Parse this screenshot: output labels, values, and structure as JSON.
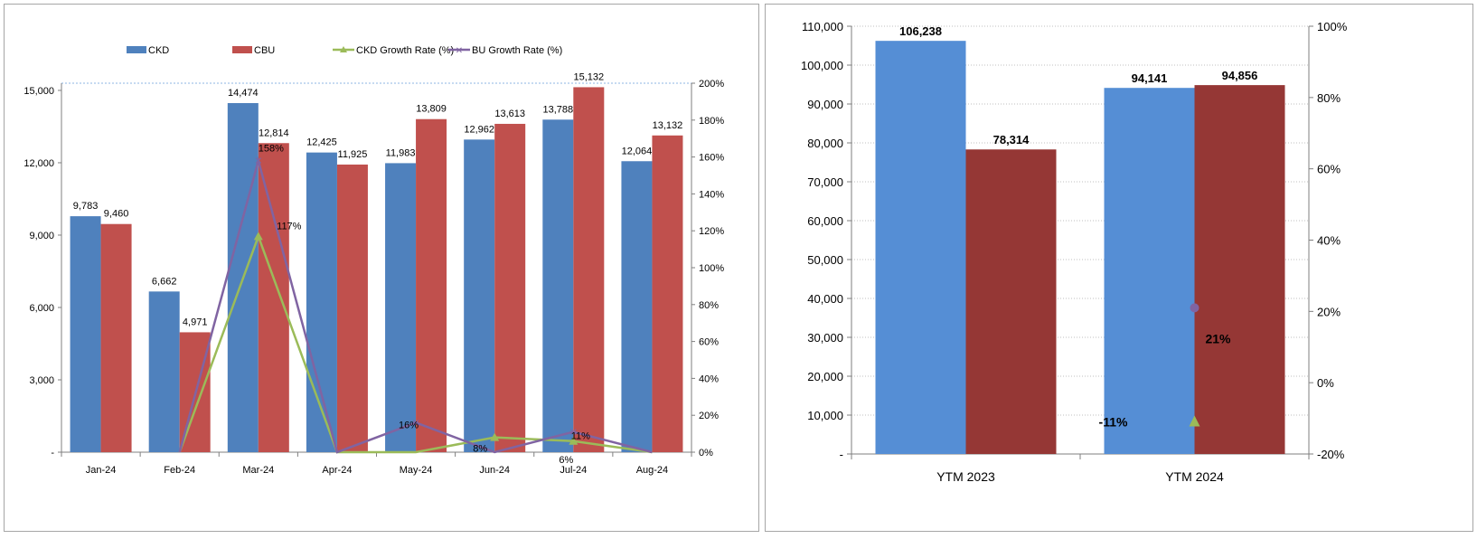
{
  "colors": {
    "ckd": "#4f81bd",
    "cbu": "#c0504d",
    "ckd_growth": "#9bbb59",
    "cbu_growth": "#8064a2",
    "ytd_blue": "#558ed5",
    "ytd_red": "#953735",
    "axis": "#7f7f7f",
    "grid": "#bfbfbf"
  },
  "chart_data": [
    {
      "type": "bar",
      "categories": [
        "Jan-24",
        "Feb-24",
        "Mar-24",
        "Apr-24",
        "May-24",
        "Jun-24",
        "Jul-24",
        "Aug-24"
      ],
      "series": [
        {
          "name": "CKD",
          "type": "bar",
          "axis": "primary",
          "values": [
            9783,
            6662,
            14474,
            12425,
            11983,
            12962,
            13788,
            12064
          ],
          "labels": [
            "9,783",
            "6,662",
            "14,474",
            "12,425",
            "11,983",
            "12,962",
            "13,788",
            "12,064"
          ]
        },
        {
          "name": "CBU",
          "type": "bar",
          "axis": "primary",
          "values": [
            9460,
            4971,
            12814,
            11925,
            13809,
            13613,
            15132,
            13132
          ],
          "labels": [
            "9,460",
            "4,971",
            "12,814",
            "11,925",
            "13,809",
            "13,613",
            "15,132",
            "13,132"
          ]
        },
        {
          "name": "CKD Growth Rate (%)",
          "type": "line",
          "axis": "secondary",
          "values": [
            null,
            0,
            117,
            0,
            0,
            8,
            6,
            0
          ]
        },
        {
          "name": "BU Growth Rate (%)",
          "type": "line",
          "axis": "secondary",
          "values": [
            null,
            0,
            158,
            0,
            16,
            0,
            11,
            0
          ]
        }
      ],
      "growth_labels": [
        {
          "text": "158%",
          "series": 3,
          "index": 2
        },
        {
          "text": "117%",
          "series": 2,
          "index": 2
        },
        {
          "text": "16%",
          "series": 3,
          "index": 4
        },
        {
          "text": "8%",
          "series": 2,
          "index": 5
        },
        {
          "text": "11%",
          "series": 3,
          "index": 6
        },
        {
          "text": "6%",
          "series": 2,
          "index": 6
        }
      ],
      "ylim": [
        0,
        15000
      ],
      "y_ticks": [
        0,
        3000,
        6000,
        9000,
        12000,
        15000
      ],
      "y_tick_labels": [
        "-",
        "3,000",
        "6,000",
        "9,000",
        "12,000",
        "15,000"
      ],
      "y2lim": [
        0,
        200
      ],
      "y2_ticks": [
        0,
        20,
        40,
        60,
        80,
        100,
        120,
        140,
        160,
        180,
        200
      ],
      "y2_tick_labels": [
        "0%",
        "20%",
        "40%",
        "60%",
        "80%",
        "100%",
        "120%",
        "140%",
        "160%",
        "180%",
        "200%"
      ],
      "legend_position": "top",
      "title": "",
      "xlabel": "",
      "ylabel": ""
    },
    {
      "type": "bar",
      "categories": [
        "YTM 2023",
        "YTM 2024"
      ],
      "series": [
        {
          "name": "",
          "type": "bar",
          "axis": "primary",
          "values": [
            106238,
            94141
          ],
          "labels": [
            "106,238",
            "94,141"
          ]
        },
        {
          "name": "",
          "type": "bar",
          "axis": "primary",
          "values": [
            78314,
            94856
          ],
          "labels": [
            "78,314",
            "94,856"
          ]
        },
        {
          "name": "",
          "type": "scatter",
          "axis": "secondary",
          "values": [
            null,
            -11
          ],
          "labels": [
            "",
            "-11%"
          ]
        },
        {
          "name": "",
          "type": "scatter",
          "axis": "secondary",
          "values": [
            null,
            21
          ],
          "labels": [
            "",
            "21%"
          ]
        }
      ],
      "ylim": [
        0,
        110000
      ],
      "y_ticks": [
        0,
        10000,
        20000,
        30000,
        40000,
        50000,
        60000,
        70000,
        80000,
        90000,
        100000,
        110000
      ],
      "y_tick_labels": [
        "-",
        "10,000",
        "20,000",
        "30,000",
        "40,000",
        "50,000",
        "60,000",
        "70,000",
        "80,000",
        "90,000",
        "100,000",
        "110,000"
      ],
      "y2lim": [
        -20,
        100
      ],
      "y2_ticks": [
        -20,
        0,
        20,
        40,
        60,
        80,
        100
      ],
      "y2_tick_labels": [
        "-20%",
        "0%",
        "20%",
        "40%",
        "60%",
        "80%",
        "100%"
      ],
      "title": "",
      "xlabel": "",
      "ylabel": ""
    }
  ]
}
